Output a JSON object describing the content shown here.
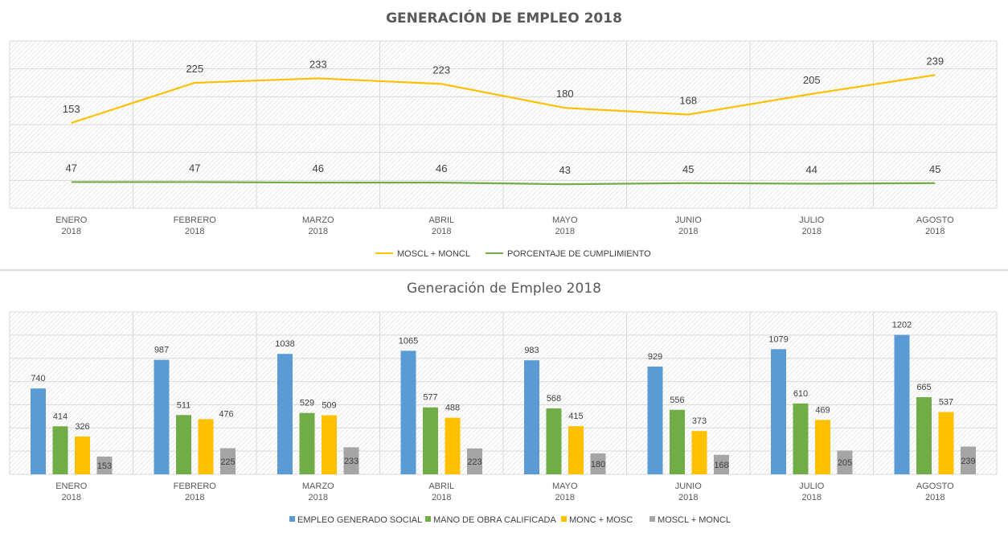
{
  "chart_data": [
    {
      "type": "line",
      "title": "GENERACIÓN DE EMPLEO 2018",
      "categories": [
        [
          "ENERO",
          "2018"
        ],
        [
          "FEBRERO",
          "2018"
        ],
        [
          "MARZO",
          "2018"
        ],
        [
          "ABRIL",
          "2018"
        ],
        [
          "MAYO",
          "2018"
        ],
        [
          "JUNIO",
          "2018"
        ],
        [
          "JULIO",
          "2018"
        ],
        [
          "AGOSTO",
          "2018"
        ]
      ],
      "ylim": [
        0,
        300
      ],
      "grid": true,
      "legend": "bottom",
      "series": [
        {
          "name": "MOSCL + MONCL",
          "color": "#ffc000",
          "values": [
            153,
            225,
            233,
            223,
            180,
            168,
            205,
            239
          ]
        },
        {
          "name": "PORCENTAJE DE CUMPLIMIENTO",
          "color": "#70ad47",
          "values": [
            47,
            47,
            46,
            46,
            43,
            45,
            44,
            45
          ]
        }
      ]
    },
    {
      "type": "bar",
      "title": "Generación de Empleo 2018",
      "categories": [
        [
          "ENERO",
          "2018"
        ],
        [
          "FEBRERO",
          "2018"
        ],
        [
          "MARZO",
          "2018"
        ],
        [
          "ABRIL",
          "2018"
        ],
        [
          "MAYO",
          "2018"
        ],
        [
          "JUNIO",
          "2018"
        ],
        [
          "JULIO",
          "2018"
        ],
        [
          "AGOSTO",
          "2018"
        ]
      ],
      "ylim": [
        0,
        1400
      ],
      "grid": true,
      "legend": "bottom",
      "series": [
        {
          "name": "EMPLEO GENERADO SOCIAL",
          "color": "#5b9bd5",
          "values": [
            740,
            987,
            1038,
            1065,
            983,
            929,
            1079,
            1202
          ]
        },
        {
          "name": "MANO DE OBRA CALIFICADA",
          "color": "#70ad47",
          "values": [
            414,
            511,
            529,
            577,
            568,
            556,
            610,
            665
          ]
        },
        {
          "name": "MONC  + MOSC",
          "color": "#ffc000",
          "values": [
            326,
            476,
            509,
            488,
            415,
            373,
            469,
            537
          ]
        },
        {
          "name": "MOSCL + MONCL",
          "color": "#a5a5a5",
          "values": [
            153,
            225,
            233,
            223,
            180,
            168,
            205,
            239
          ]
        }
      ]
    }
  ]
}
